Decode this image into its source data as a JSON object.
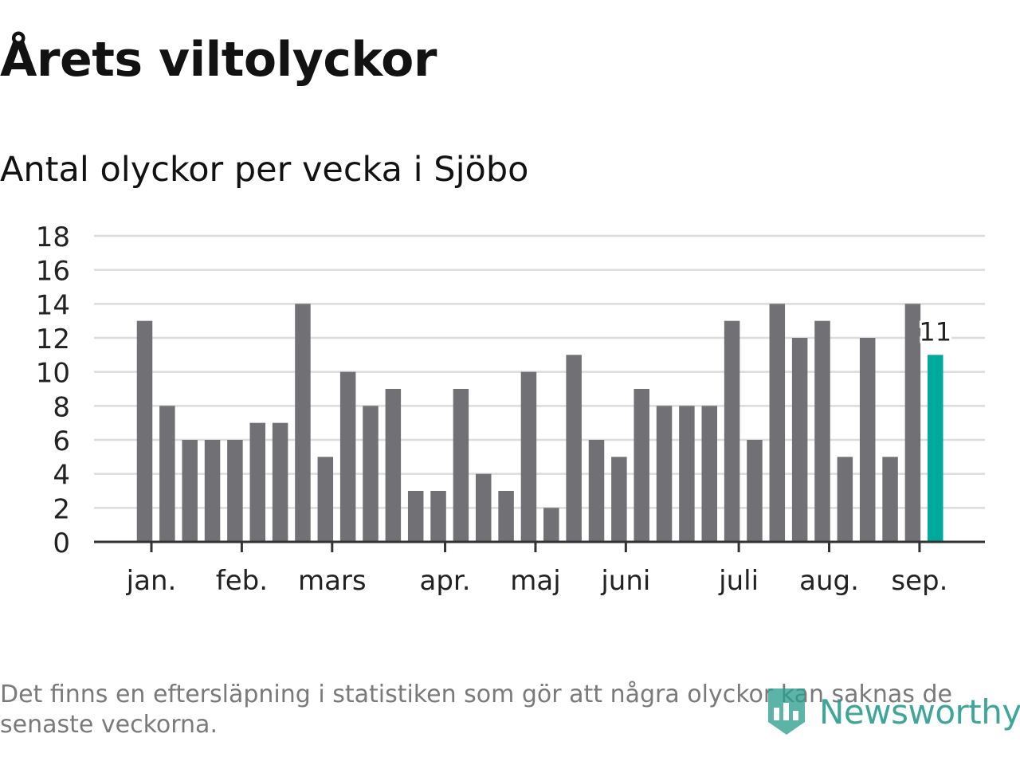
{
  "header": {
    "title": "Årets viltolyckor",
    "subtitle": "Antal olyckor per vecka i Sjöbo"
  },
  "footer": {
    "note": "Det finns en eftersläpning i statistiken som gör att några olyckor kan saknas de senaste veckorna.",
    "logo_text": "Newsworthy",
    "logo_icon": "newsworthy-bar-chart-icon"
  },
  "colors": {
    "bar": "#717075",
    "highlight": "#00a99d",
    "grid": "#dcdcdc",
    "axis": "#333333",
    "brand": "#2a9d8f"
  },
  "chart_data": {
    "type": "bar",
    "title": "Årets viltolyckor",
    "subtitle": "Antal olyckor per vecka i Sjöbo",
    "xlabel": "",
    "ylabel": "",
    "ylim": [
      0,
      18
    ],
    "yticks": [
      0,
      2,
      4,
      6,
      8,
      10,
      12,
      14,
      16,
      18
    ],
    "grid": true,
    "values": [
      13,
      8,
      6,
      6,
      6,
      7,
      7,
      14,
      5,
      10,
      8,
      9,
      3,
      3,
      9,
      4,
      3,
      10,
      2,
      11,
      6,
      5,
      9,
      8,
      8,
      8,
      13,
      6,
      14,
      12,
      13,
      5,
      12,
      5,
      14,
      11
    ],
    "month_ticks": [
      {
        "label": "jan.",
        "week": 1.3
      },
      {
        "label": "feb.",
        "week": 5.3
      },
      {
        "label": "mars",
        "week": 9.3
      },
      {
        "label": "apr.",
        "week": 14.3
      },
      {
        "label": "maj",
        "week": 18.3
      },
      {
        "label": "juni",
        "week": 22.3
      },
      {
        "label": "juli",
        "week": 27.3
      },
      {
        "label": "aug.",
        "week": 31.3
      },
      {
        "label": "sep.",
        "week": 35.3
      }
    ],
    "highlight_index": 35,
    "highlight_label": "11"
  }
}
